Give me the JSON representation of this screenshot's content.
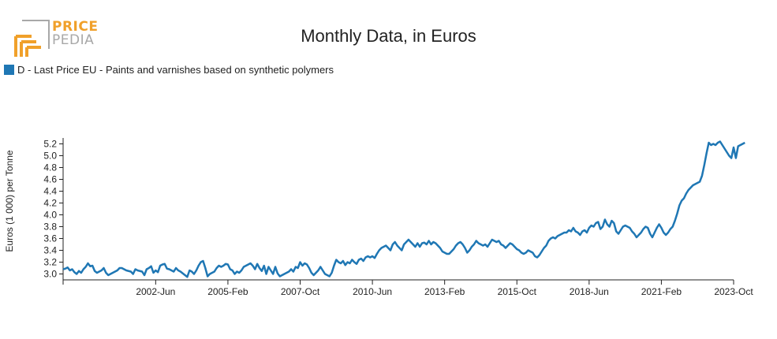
{
  "logo": {
    "top_text": "PRICE",
    "bottom_text": "PEDIA",
    "orange": "#f0a02a",
    "gray": "#a8a8a8"
  },
  "chart_data": {
    "type": "line",
    "title": "Monthly Data, in Euros",
    "ylabel": "Euros (1 000) per Tonne",
    "xlabel": "",
    "ylim": [
      2.9,
      5.3
    ],
    "y_ticks": [
      "3.0",
      "3.2",
      "3.4",
      "3.6",
      "3.8",
      "4.0",
      "4.2",
      "4.4",
      "4.6",
      "4.8",
      "5.0",
      "5.2"
    ],
    "x_range": [
      "1999-Jan",
      "2023-Oct"
    ],
    "x_ticks": [
      "2002-Jun",
      "2005-Feb",
      "2007-Oct",
      "2010-Jun",
      "2013-Feb",
      "2015-Oct",
      "2018-Jun",
      "2021-Feb",
      "2023-Oct"
    ],
    "legend_position": "top-left",
    "grid": false,
    "series": [
      {
        "name": "D - Last Price EU - Paints and varnishes based on synthetic polymers",
        "color": "#1f77b4",
        "x_start": "1999-Jan",
        "frequency": "monthly",
        "values": [
          3.08,
          3.09,
          3.11,
          3.06,
          3.08,
          3.03,
          3.0,
          3.05,
          3.02,
          3.08,
          3.12,
          3.18,
          3.13,
          3.14,
          3.05,
          3.02,
          3.04,
          3.06,
          3.1,
          3.02,
          2.98,
          3.0,
          3.02,
          3.04,
          3.06,
          3.1,
          3.1,
          3.08,
          3.06,
          3.05,
          3.04,
          3.0,
          3.08,
          3.06,
          3.05,
          3.04,
          2.98,
          3.08,
          3.1,
          3.13,
          3.02,
          3.06,
          3.03,
          3.14,
          3.16,
          3.17,
          3.09,
          3.08,
          3.06,
          3.04,
          3.1,
          3.06,
          3.04,
          3.01,
          2.98,
          2.95,
          3.06,
          3.04,
          3.0,
          3.06,
          3.14,
          3.2,
          3.22,
          3.1,
          2.96,
          3.0,
          3.02,
          3.04,
          3.1,
          3.14,
          3.12,
          3.14,
          3.17,
          3.16,
          3.08,
          3.06,
          3.0,
          3.04,
          3.02,
          3.06,
          3.12,
          3.14,
          3.16,
          3.18,
          3.14,
          3.08,
          3.17,
          3.1,
          3.05,
          3.14,
          3.0,
          3.12,
          3.06,
          3.0,
          3.12,
          3.01,
          2.96,
          2.98,
          3.0,
          3.02,
          3.04,
          3.08,
          3.04,
          3.12,
          3.1,
          3.2,
          3.14,
          3.18,
          3.16,
          3.1,
          3.02,
          2.98,
          3.02,
          3.06,
          3.12,
          3.06,
          3.0,
          2.98,
          2.96,
          3.02,
          3.14,
          3.24,
          3.2,
          3.18,
          3.22,
          3.15,
          3.2,
          3.18,
          3.24,
          3.2,
          3.17,
          3.24,
          3.26,
          3.22,
          3.28,
          3.3,
          3.28,
          3.3,
          3.27,
          3.34,
          3.4,
          3.44,
          3.46,
          3.48,
          3.44,
          3.4,
          3.5,
          3.54,
          3.48,
          3.44,
          3.4,
          3.5,
          3.54,
          3.58,
          3.54,
          3.5,
          3.46,
          3.52,
          3.46,
          3.52,
          3.53,
          3.5,
          3.56,
          3.5,
          3.54,
          3.52,
          3.48,
          3.44,
          3.38,
          3.36,
          3.34,
          3.34,
          3.38,
          3.42,
          3.48,
          3.52,
          3.54,
          3.5,
          3.44,
          3.36,
          3.4,
          3.46,
          3.5,
          3.56,
          3.52,
          3.5,
          3.48,
          3.5,
          3.46,
          3.52,
          3.58,
          3.56,
          3.54,
          3.56,
          3.5,
          3.48,
          3.44,
          3.48,
          3.52,
          3.5,
          3.46,
          3.42,
          3.4,
          3.36,
          3.34,
          3.36,
          3.4,
          3.38,
          3.36,
          3.3,
          3.28,
          3.32,
          3.38,
          3.44,
          3.48,
          3.56,
          3.6,
          3.62,
          3.6,
          3.64,
          3.66,
          3.68,
          3.7,
          3.7,
          3.74,
          3.72,
          3.78,
          3.72,
          3.7,
          3.66,
          3.72,
          3.74,
          3.7,
          3.78,
          3.82,
          3.8,
          3.86,
          3.88,
          3.76,
          3.8,
          3.92,
          3.84,
          3.8,
          3.9,
          3.86,
          3.72,
          3.68,
          3.74,
          3.8,
          3.82,
          3.8,
          3.78,
          3.72,
          3.68,
          3.62,
          3.66,
          3.7,
          3.76,
          3.8,
          3.78,
          3.68,
          3.62,
          3.7,
          3.78,
          3.84,
          3.78,
          3.7,
          3.66,
          3.7,
          3.76,
          3.8,
          3.9,
          4.02,
          4.16,
          4.24,
          4.28,
          4.36,
          4.42,
          4.46,
          4.5,
          4.52,
          4.54,
          4.56,
          4.66,
          4.84,
          5.04,
          5.22,
          5.18,
          5.2,
          5.18,
          5.22,
          5.24,
          5.18,
          5.12,
          5.06,
          5.0,
          4.96,
          5.14,
          4.96,
          5.16,
          5.18,
          5.2,
          5.22
        ]
      }
    ]
  }
}
